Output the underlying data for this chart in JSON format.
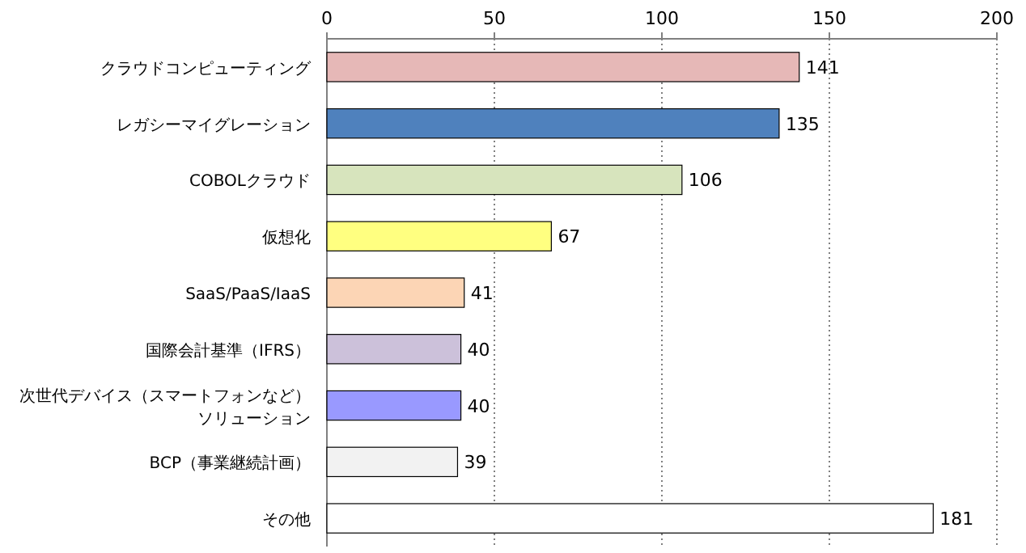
{
  "chart_data": {
    "type": "bar",
    "orientation": "horizontal",
    "categories": [
      "クラウドコンピューティング",
      "レガシーマイグレーション",
      "COBOLクラウド",
      "仮想化",
      "SaaS/PaaS/IaaS",
      "国際会計基準（IFRS）",
      "次世代デバイス（スマートフォンなど）ソリューション",
      "BCP（事業継続計画）",
      "その他"
    ],
    "values": [
      141,
      135,
      106,
      67,
      41,
      40,
      40,
      39,
      181
    ],
    "colors": [
      "#e6b8b7",
      "#4f81bd",
      "#d7e4bd",
      "#ffff80",
      "#fcd5b5",
      "#ccc1da",
      "#9999ff",
      "#f2f2f2",
      "#ffffff"
    ],
    "xlim": [
      0,
      200
    ],
    "xticks": [
      0,
      50,
      100,
      150,
      200
    ],
    "grid": "x",
    "data_labels": true
  }
}
